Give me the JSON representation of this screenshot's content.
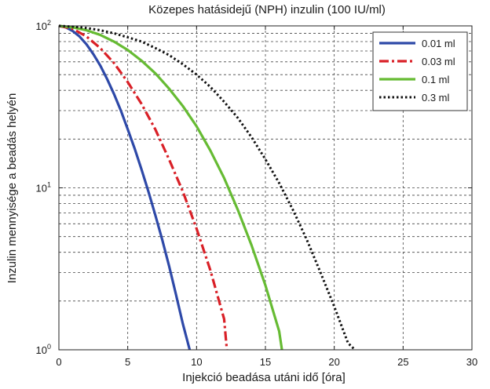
{
  "chart_data": {
    "type": "line",
    "title": "Közepes hatásidejű (NPH) inzulin (100 IU/ml)",
    "xlabel": "Injekció beadása utáni idő [óra]",
    "ylabel": "Inzulin mennyisége a beadás helyén",
    "xlim": [
      0,
      30
    ],
    "ylim": [
      1,
      100
    ],
    "yscale": "log",
    "grid": true,
    "legend_position": "top-right",
    "x_ticks": [
      0,
      5,
      10,
      15,
      20,
      25,
      30
    ],
    "x_tick_labels": [
      "0",
      "5",
      "10",
      "15",
      "20",
      "25",
      "30"
    ],
    "y_ticks": [
      1,
      10,
      100
    ],
    "y_tick_labels": [
      {
        "base": "10",
        "exp": "0"
      },
      {
        "base": "10",
        "exp": "1"
      },
      {
        "base": "10",
        "exp": "2"
      }
    ],
    "series": [
      {
        "name": "0.01 ml",
        "color": "#2e49a8",
        "style": "solid",
        "x": [
          0,
          0.5,
          1,
          1.5,
          2,
          2.5,
          3,
          3.5,
          4,
          4.5,
          5,
          5.5,
          6,
          6.5,
          7,
          7.5,
          8,
          8.5,
          9,
          9.5
        ],
        "y": [
          100,
          98,
          93,
          86,
          77,
          67,
          57,
          47,
          38,
          30,
          23,
          17.5,
          13,
          9.5,
          6.8,
          4.8,
          3.3,
          2.2,
          1.45,
          1.0
        ]
      },
      {
        "name": "0.03 ml",
        "color": "#d92027",
        "style": "dashdot",
        "x": [
          0,
          1,
          2,
          3,
          4,
          5,
          6,
          7,
          8,
          9,
          10,
          11,
          12,
          12.2
        ],
        "y": [
          100,
          96,
          86,
          73,
          59,
          45,
          33,
          23,
          15,
          9.5,
          5.6,
          3.1,
          1.55,
          1.0
        ]
      },
      {
        "name": "0.1 ml",
        "color": "#66bb33",
        "style": "solid",
        "x": [
          0,
          1,
          2,
          3,
          4,
          5,
          6,
          7,
          8,
          9,
          10,
          11,
          12,
          13,
          14,
          15,
          16,
          16.2
        ],
        "y": [
          100,
          98,
          94,
          88,
          80,
          71,
          61,
          51,
          41,
          32,
          24,
          17,
          11.5,
          7.3,
          4.4,
          2.5,
          1.3,
          1.0
        ]
      },
      {
        "name": "0.3 ml",
        "color": "#111111",
        "style": "dotted",
        "x": [
          0,
          1,
          2,
          3,
          4,
          5,
          6,
          7,
          8,
          9,
          10,
          11,
          12,
          13,
          14,
          15,
          16,
          17,
          18,
          19,
          20,
          21,
          21.5
        ],
        "y": [
          100,
          99,
          97,
          94,
          90,
          85,
          80,
          73,
          66,
          58,
          50,
          42,
          34,
          27,
          20.5,
          15,
          10.7,
          7.3,
          4.8,
          3.0,
          1.85,
          1.1,
          1.0
        ]
      }
    ]
  }
}
